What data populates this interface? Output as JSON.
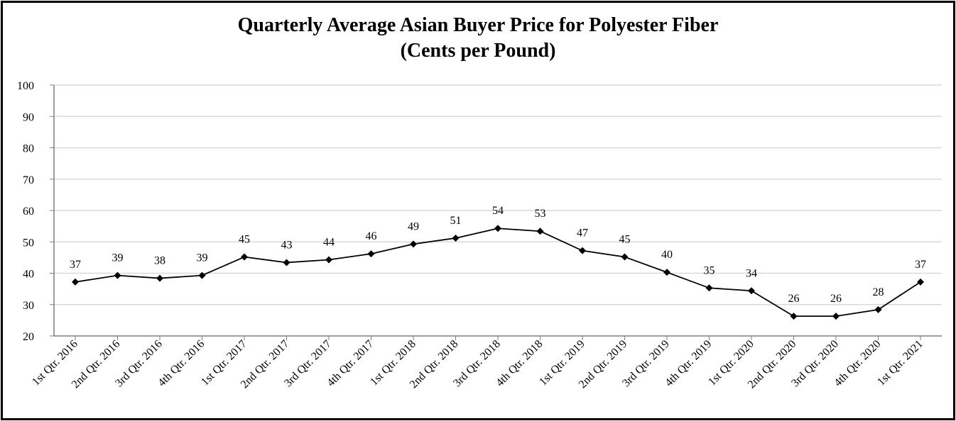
{
  "chart_data": {
    "type": "line",
    "title": "Quarterly Average Asian Buyer Price for Polyester Fiber",
    "subtitle": "(Cents per Pound)",
    "xlabel": "",
    "ylabel": "",
    "ylim": [
      20,
      100
    ],
    "yticks": [
      20,
      30,
      40,
      50,
      60,
      70,
      80,
      90,
      100
    ],
    "grid": true,
    "legend": "none",
    "categories": [
      "1st Qtr. 2016",
      "2nd Qtr. 2016",
      "3rd Qtr. 2016",
      "4th Qtr. 2016",
      "1st Qtr. 2017",
      "2nd Qtr. 2017",
      "3rd Qtr. 2017",
      "4th Qtr. 2017",
      "1st Qtr. 2018",
      "2nd Qtr. 2018",
      "3rd Qtr. 2018",
      "4th Qtr. 2018",
      "1st Qtr. 2019",
      "2nd Qtr. 2019",
      "3rd Qtr. 2019",
      "4th Qtr. 2019",
      "1st Qtr. 2020",
      "2nd Qtr. 2020",
      "3rd Qtr. 2020",
      "4th Qtr. 2020",
      "1st Qtr. 2021"
    ],
    "series": [
      {
        "name": "Asian Buyer Price",
        "values": [
          37.2,
          39.3,
          38.4,
          39.3,
          45.2,
          43.4,
          44.3,
          46.2,
          49.3,
          51.2,
          54.3,
          53.4,
          47.2,
          45.2,
          40.3,
          35.3,
          34.4,
          26.3,
          26.3,
          28.4,
          37.2
        ],
        "labels": [
          "37",
          "39",
          "38",
          "39",
          "45",
          "43",
          "44",
          "46",
          "49",
          "51",
          "54",
          "53",
          "47",
          "45",
          "40",
          "35",
          "34",
          "26",
          "26",
          "28",
          "37"
        ],
        "color": "#000000"
      }
    ]
  }
}
